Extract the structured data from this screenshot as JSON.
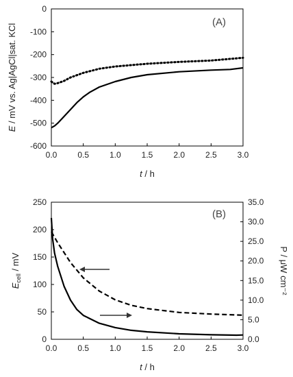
{
  "chart_data": [
    {
      "type": "line",
      "panel_label": "(A)",
      "xlabel_var": "t",
      "xlabel_unit": " / h",
      "ylabel_var": "E",
      "ylabel_unit": " /  mV vs. Ag|AgCl|sat. KCl",
      "xlim": [
        0,
        3.0
      ],
      "ylim": [
        -600,
        0
      ],
      "xticks": [
        "0.0",
        "0.5",
        "1.0",
        "1.5",
        "2.0",
        "2.5",
        "3.0"
      ],
      "yticks": [
        "0",
        "-100",
        "-200",
        "-300",
        "-400",
        "-500",
        "-600"
      ],
      "grid": false,
      "series": [
        {
          "style": "dotted",
          "x": [
            0.0,
            0.05,
            0.1,
            0.2,
            0.3,
            0.5,
            0.75,
            1.0,
            1.5,
            2.0,
            2.5,
            3.0
          ],
          "y": [
            -318,
            -328,
            -325,
            -315,
            -300,
            -280,
            -262,
            -252,
            -240,
            -232,
            -226,
            -214
          ]
        },
        {
          "style": "solid",
          "x": [
            0.0,
            0.05,
            0.1,
            0.2,
            0.3,
            0.4,
            0.5,
            0.6,
            0.75,
            1.0,
            1.25,
            1.5,
            2.0,
            2.5,
            2.8,
            3.0
          ],
          "y": [
            -520,
            -512,
            -500,
            -470,
            -440,
            -410,
            -385,
            -365,
            -342,
            -318,
            -300,
            -288,
            -275,
            -268,
            -265,
            -258
          ]
        }
      ]
    },
    {
      "type": "line",
      "panel_label": "(B)",
      "xlabel_var": "t",
      "xlabel_unit": " / h",
      "ylabel_var": "E",
      "ylabel_sub": "cell",
      "ylabel_unit": " /  mV",
      "y2label": "P / μW cm⁻²",
      "xlim": [
        0,
        3.0
      ],
      "ylim": [
        0,
        250
      ],
      "y2lim": [
        0,
        35
      ],
      "xticks": [
        "0.0",
        "0.5",
        "1.0",
        "1.5",
        "2.0",
        "2.5",
        "3.0"
      ],
      "yticks": [
        "0",
        "50",
        "100",
        "150",
        "200",
        "250"
      ],
      "y2ticks": [
        "0.0",
        "5.0",
        "10.0",
        "15.0",
        "20.0",
        "25.0",
        "30.0",
        "35.0"
      ],
      "grid": false,
      "series": [
        {
          "style": "dashed",
          "axis": "left",
          "x": [
            0.0,
            0.05,
            0.1,
            0.2,
            0.3,
            0.5,
            0.75,
            1.0,
            1.25,
            1.5,
            2.0,
            2.5,
            3.0
          ],
          "y": [
            196,
            186,
            176,
            158,
            140,
            112,
            88,
            72,
            62,
            56,
            49,
            46,
            44
          ]
        },
        {
          "style": "solid",
          "axis": "right",
          "x": [
            0.0,
            0.02,
            0.05,
            0.1,
            0.2,
            0.3,
            0.4,
            0.5,
            0.75,
            1.0,
            1.25,
            1.5,
            2.0,
            2.5,
            2.9,
            3.0
          ],
          "y": [
            31.0,
            25.6,
            22.0,
            18.6,
            13.5,
            10.0,
            7.6,
            6.1,
            4.1,
            3.0,
            2.3,
            1.9,
            1.4,
            1.15,
            1.05,
            1.1
          ]
        }
      ],
      "annotations": [
        {
          "type": "arrow",
          "direction": "left",
          "points_to": "left-axis"
        },
        {
          "type": "arrow",
          "direction": "right",
          "points_to": "right-axis"
        }
      ]
    }
  ]
}
